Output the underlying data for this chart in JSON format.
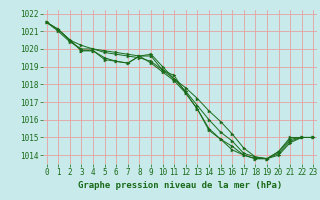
{
  "title": "Graphe pression niveau de la mer (hPa)",
  "bg_color": "#c8eaea",
  "grid_color": "#e8a0a0",
  "line_color": "#1a6b1a",
  "xlim": [
    -0.3,
    23.3
  ],
  "ylim": [
    1013.5,
    1022.2
  ],
  "yticks": [
    1014,
    1015,
    1016,
    1017,
    1018,
    1019,
    1020,
    1021,
    1022
  ],
  "xticks": [
    0,
    1,
    2,
    3,
    4,
    5,
    6,
    7,
    8,
    9,
    10,
    11,
    12,
    13,
    14,
    15,
    16,
    17,
    18,
    19,
    20,
    21,
    22,
    23
  ],
  "series": [
    [
      1021.5,
      1021.1,
      1020.5,
      1019.9,
      1019.9,
      1019.4,
      1019.3,
      1019.2,
      1019.6,
      1019.6,
      1018.8,
      1018.5,
      1017.5,
      1016.6,
      1015.5,
      1014.9,
      1014.5,
      1014.0,
      1013.8,
      1013.8,
      1014.2,
      1015.0,
      1015.0,
      1015.0
    ],
    [
      1021.5,
      1021.1,
      1020.5,
      1020.2,
      1020.0,
      1019.9,
      1019.8,
      1019.7,
      1019.6,
      1019.7,
      1019.0,
      1018.3,
      1017.6,
      1016.8,
      1016.0,
      1015.3,
      1014.8,
      1014.1,
      1013.9,
      1013.8,
      1014.1,
      1014.8,
      1015.0,
      1015.0
    ],
    [
      1021.5,
      1021.1,
      1020.5,
      1019.9,
      1019.9,
      1019.5,
      1019.3,
      1019.2,
      1019.6,
      1019.2,
      1018.7,
      1018.2,
      1017.5,
      1016.6,
      1015.4,
      1014.9,
      1014.3,
      1014.0,
      1013.8,
      1013.8,
      1014.2,
      1014.9,
      1015.0,
      1015.0
    ],
    [
      1021.5,
      1021.0,
      1020.4,
      1020.0,
      1020.0,
      1019.8,
      1019.7,
      1019.6,
      1019.5,
      1019.3,
      1018.8,
      1018.3,
      1017.8,
      1017.2,
      1016.5,
      1015.9,
      1015.2,
      1014.4,
      1013.9,
      1013.8,
      1014.0,
      1014.7,
      1015.0,
      1015.0
    ]
  ],
  "title_fontsize": 6.5,
  "tick_fontsize": 5.5
}
